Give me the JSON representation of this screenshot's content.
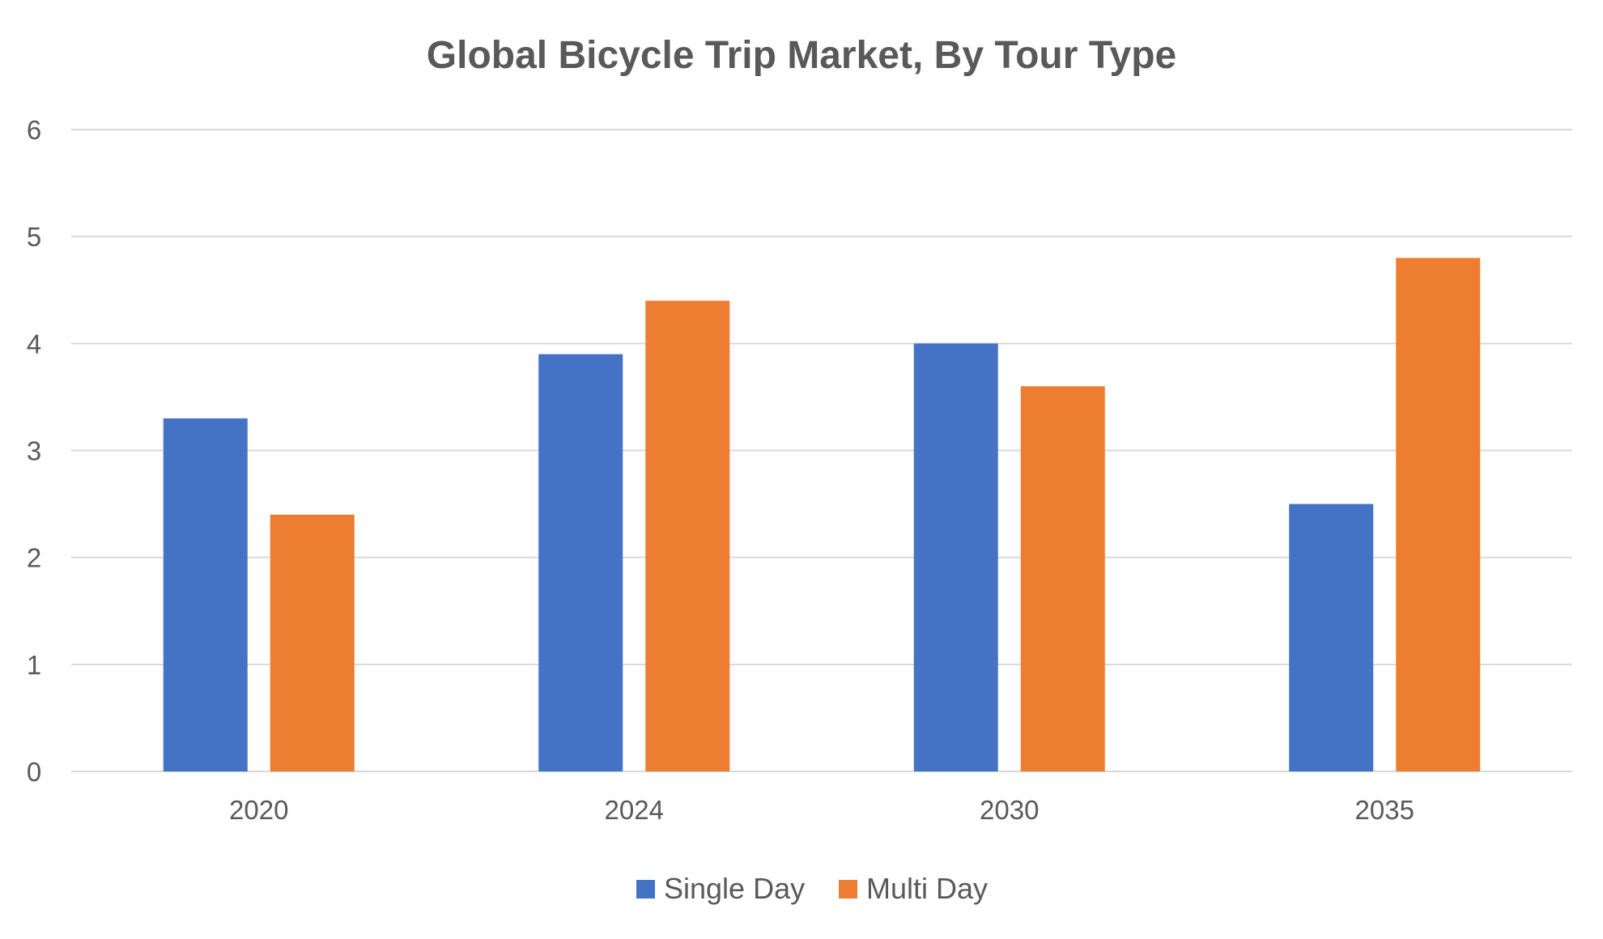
{
  "chart_data": {
    "type": "bar",
    "title": "Global Bicycle Trip Market, By Tour Type",
    "xlabel": "",
    "ylabel": "",
    "categories": [
      "2020",
      "2024",
      "2030",
      "2035"
    ],
    "series": [
      {
        "name": "Single Day",
        "color": "#4472C4",
        "values": [
          3.3,
          3.9,
          4.0,
          2.5
        ]
      },
      {
        "name": "Multi Day",
        "color": "#ED7D31",
        "values": [
          2.4,
          4.4,
          3.6,
          4.8
        ]
      }
    ],
    "ylim": [
      0,
      6
    ],
    "yticks": [
      "0",
      "1",
      "2",
      "3",
      "4",
      "5",
      "6"
    ],
    "grid": true,
    "legend_position": "bottom",
    "colors": {
      "gridline": "#D9D9D9",
      "text": "#595959"
    }
  }
}
